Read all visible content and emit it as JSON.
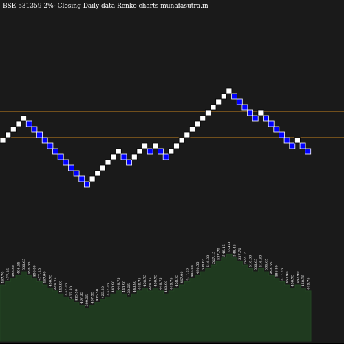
{
  "title_text": "BSE 531359 2%-  Closing Daily data  Renko  charts munafasutra.in",
  "colors": {
    "background": "#000000",
    "panel": "#1a1a1a",
    "up_brick_fill": "#ffffff",
    "down_brick_fill": "#0000ff",
    "down_brick_stroke": "#ffffff",
    "support_line": "#c8841e",
    "area_fill": "#1f3a1f",
    "area_top": "#234423"
  },
  "chart_data": [
    {
      "type": "renko",
      "brick_size_pct": 2,
      "directions": [
        1,
        1,
        1,
        1,
        1,
        -1,
        -1,
        -1,
        -1,
        -1,
        -1,
        -1,
        -1,
        -1,
        -1,
        -1,
        -1,
        1,
        1,
        1,
        1,
        1,
        1,
        -1,
        -1,
        1,
        1,
        1,
        -1,
        1,
        -1,
        -1,
        1,
        1,
        1,
        1,
        1,
        1,
        1,
        1,
        1,
        1,
        1,
        1,
        -1,
        -1,
        -1,
        -1,
        -1,
        1,
        -1,
        -1,
        -1,
        -1,
        -1,
        -1,
        1,
        -1,
        -1
      ],
      "horizontal_levels": [
        "upper",
        "lower"
      ]
    },
    {
      "type": "area",
      "labels": [
        "467.70",
        "477.25",
        "486.80",
        "496.55",
        "506.65",
        "496.55",
        "486.80",
        "477.25",
        "467.90",
        "458.75",
        "449.75",
        "440.90",
        "432.25",
        "423.80",
        "415.50",
        "407.35",
        "399.35",
        "407.35",
        "415.50",
        "423.80",
        "432.25",
        "440.90",
        "449.75",
        "440.90",
        "432.25",
        "440.90",
        "449.75",
        "458.75",
        "449.75",
        "458.75",
        "449.75",
        "440.90",
        "449.75",
        "458.75",
        "467.90",
        "477.25",
        "486.80",
        "496.55",
        "506.65",
        "516.80",
        "527.15",
        "537.70",
        "548.45",
        "559.40",
        "548.45",
        "537.70",
        "527.15",
        "516.80",
        "506.65",
        "516.80",
        "506.65",
        "496.55",
        "486.80",
        "477.25",
        "467.90",
        "458.75",
        "467.90",
        "458.75",
        "449.75"
      ],
      "values": [
        467.7,
        477.25,
        486.8,
        496.55,
        506.65,
        496.55,
        486.8,
        477.25,
        467.9,
        458.75,
        449.75,
        440.9,
        432.25,
        423.8,
        415.5,
        407.35,
        399.35,
        407.35,
        415.5,
        423.8,
        432.25,
        440.9,
        449.75,
        440.9,
        432.25,
        440.9,
        449.75,
        458.75,
        449.75,
        458.75,
        449.75,
        440.9,
        449.75,
        458.75,
        467.9,
        477.25,
        486.8,
        496.55,
        506.65,
        516.8,
        527.15,
        537.7,
        548.45,
        559.4,
        548.45,
        537.7,
        527.15,
        516.8,
        506.65,
        516.8,
        506.65,
        496.55,
        486.8,
        477.25,
        467.9,
        458.75,
        467.9,
        458.75,
        449.75
      ]
    }
  ]
}
